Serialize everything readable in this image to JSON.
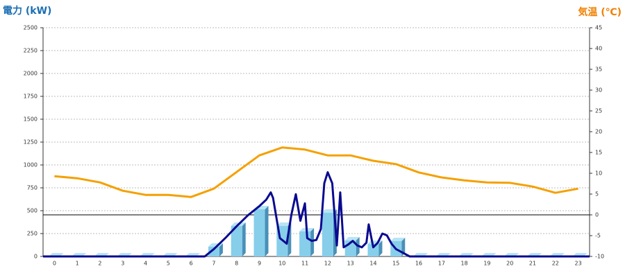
{
  "chart_data": {
    "type": "combo",
    "ylabel": "電力 (kW)",
    "y2label": "気温 (℃)",
    "categories": [
      "0",
      "1",
      "2",
      "3",
      "4",
      "5",
      "6",
      "7",
      "8",
      "9",
      "10",
      "11",
      "12",
      "13",
      "14",
      "15",
      "16",
      "17",
      "18",
      "19",
      "20",
      "21",
      "22",
      "23"
    ],
    "xlim": [
      -0.5,
      23.5
    ],
    "ylim": [
      0,
      2500
    ],
    "yticks": [
      0,
      250,
      500,
      750,
      1000,
      1250,
      1500,
      1750,
      2000,
      2250,
      2500
    ],
    "y2lim": [
      -10,
      45
    ],
    "y2ticks": [
      -10,
      -5,
      0,
      5,
      10,
      15,
      20,
      25,
      30,
      35,
      40,
      45
    ],
    "grid": true,
    "series": [
      {
        "type": "bar",
        "color": "#87ceeb",
        "values": [
          0,
          0,
          0,
          0,
          0,
          0,
          0,
          106,
          333,
          515,
          333,
          273,
          477,
          174,
          136,
          167,
          0,
          0,
          0,
          0,
          0,
          0,
          0,
          0
        ]
      },
      {
        "type": "line",
        "axis": "y2",
        "color": "#f5a000",
        "values": [
          9.3,
          8.8,
          7.8,
          5.8,
          4.8,
          4.8,
          4.3,
          6.3,
          10.3,
          14.3,
          16.2,
          15.7,
          14.3,
          14.3,
          13,
          12.2,
          10.2,
          9,
          8.3,
          7.8,
          7.7,
          6.8,
          5.3,
          6.3
        ]
      },
      {
        "type": "line",
        "color": "#0a0a90",
        "x": [
          -0.5,
          6.6,
          7,
          7.5,
          8,
          8.5,
          9,
          9.3,
          9.5,
          9.6,
          9.9,
          10.2,
          10.4,
          10.6,
          10.8,
          11,
          11.1,
          11.3,
          11.5,
          11.7,
          11.85,
          12,
          12.2,
          12.4,
          12.55,
          12.7,
          12.9,
          13.1,
          13.3,
          13.5,
          13.7,
          13.8,
          14,
          14.2,
          14.4,
          14.6,
          14.8,
          15,
          15.3,
          15.6,
          23.5
        ],
        "values": [
          0,
          0,
          80,
          200,
          330,
          450,
          550,
          620,
          700,
          640,
          200,
          140,
          450,
          680,
          390,
          580,
          200,
          170,
          180,
          300,
          800,
          920,
          800,
          120,
          700,
          100,
          130,
          170,
          120,
          100,
          150,
          350,
          100,
          150,
          250,
          230,
          140,
          80,
          40,
          0,
          0
        ]
      }
    ]
  }
}
